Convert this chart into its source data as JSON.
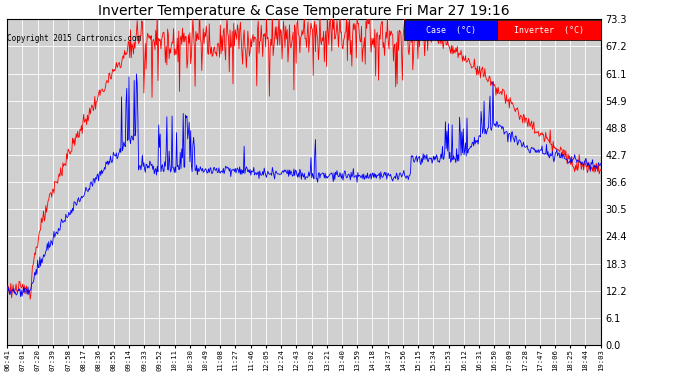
{
  "title": "Inverter Temperature & Case Temperature Fri Mar 27 19:16",
  "copyright": "Copyright 2015 Cartronics.com",
  "legend_labels": [
    "Case  (°C)",
    "Inverter  (°C)"
  ],
  "y_ticks": [
    0.0,
    6.1,
    12.2,
    18.3,
    24.4,
    30.5,
    36.6,
    42.7,
    48.8,
    54.9,
    61.1,
    67.2,
    73.3
  ],
  "ylim": [
    0.0,
    73.3
  ],
  "background_color": "#ffffff",
  "plot_bg": "#d0d0d0",
  "grid_color": "#ffffff",
  "x_labels": [
    "06:41",
    "07:01",
    "07:20",
    "07:39",
    "07:58",
    "08:17",
    "08:36",
    "08:55",
    "09:14",
    "09:33",
    "09:52",
    "10:11",
    "10:30",
    "10:49",
    "11:08",
    "11:27",
    "11:46",
    "12:05",
    "12:24",
    "12:43",
    "13:02",
    "13:21",
    "13:40",
    "13:59",
    "14:18",
    "14:37",
    "14:56",
    "15:15",
    "15:34",
    "15:53",
    "16:12",
    "16:31",
    "16:50",
    "17:09",
    "17:28",
    "17:47",
    "18:06",
    "18:25",
    "18:44",
    "19:03"
  ],
  "case_color": "blue",
  "inverter_color": "red",
  "title_fontsize": 11,
  "n_points": 800
}
